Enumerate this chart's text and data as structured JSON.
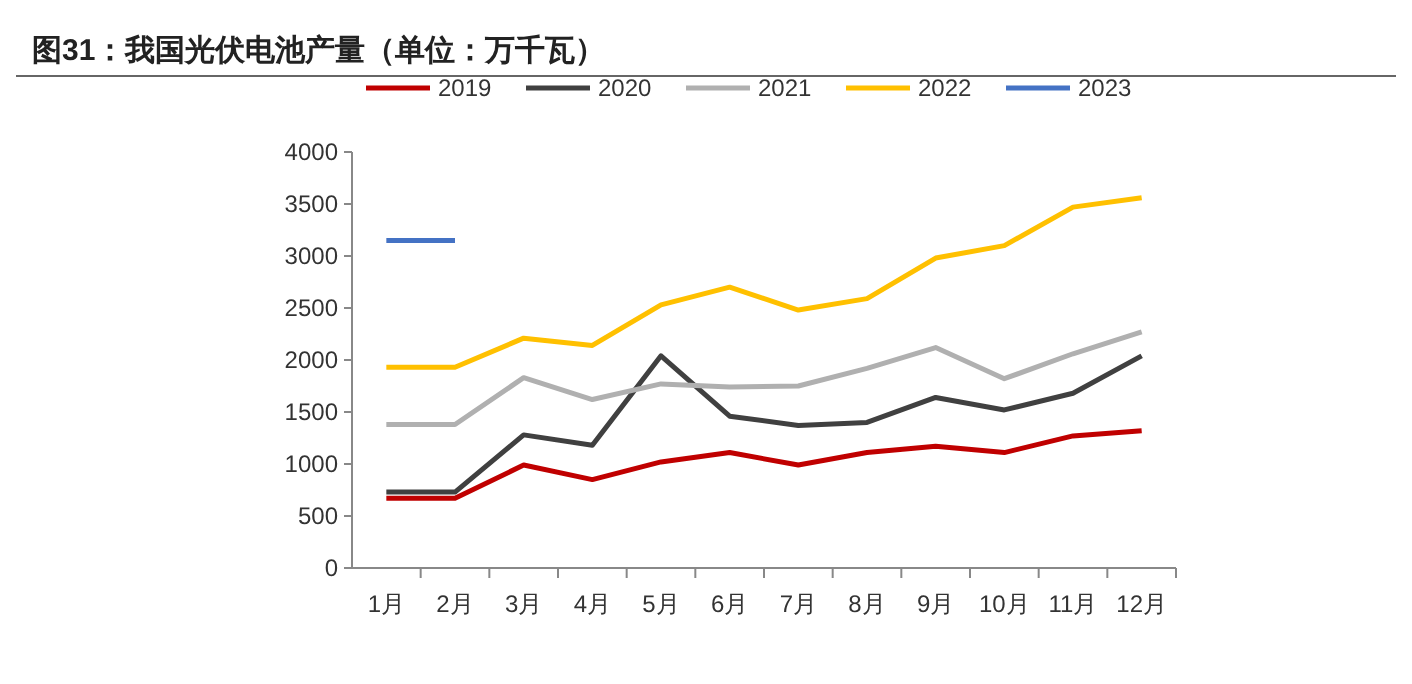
{
  "chart_data": {
    "type": "line",
    "title": "图31：我国光伏电池产量（单位：万千瓦）",
    "categories": [
      "1月",
      "2月",
      "3月",
      "4月",
      "5月",
      "6月",
      "7月",
      "8月",
      "9月",
      "10月",
      "11月",
      "12月"
    ],
    "series": [
      {
        "name": "2019",
        "color": "#c00000",
        "values": [
          670,
          670,
          990,
          850,
          1020,
          1110,
          990,
          1110,
          1170,
          1110,
          1270,
          1320
        ]
      },
      {
        "name": "2020",
        "color": "#404040",
        "values": [
          730,
          730,
          1280,
          1180,
          2040,
          1460,
          1370,
          1400,
          1640,
          1520,
          1680,
          2040
        ]
      },
      {
        "name": "2021",
        "color": "#b0b0b0",
        "values": [
          1380,
          1380,
          1830,
          1620,
          1770,
          1740,
          1750,
          1920,
          2120,
          1820,
          2060,
          2270
        ]
      },
      {
        "name": "2022",
        "color": "#ffc000",
        "values": [
          1930,
          1930,
          2210,
          2140,
          2530,
          2700,
          2480,
          2590,
          2980,
          3100,
          3470,
          3560
        ]
      },
      {
        "name": "2023",
        "color": "#4472c4",
        "values": [
          3150,
          3150,
          null,
          null,
          null,
          null,
          null,
          null,
          null,
          null,
          null,
          null
        ]
      }
    ],
    "ylim": [
      0,
      4000
    ],
    "yticks": [
      0,
      500,
      1000,
      1500,
      2000,
      2500,
      3000,
      3500,
      4000
    ],
    "grid": false,
    "legend": "top",
    "marker": "none",
    "line_style": "solid"
  }
}
